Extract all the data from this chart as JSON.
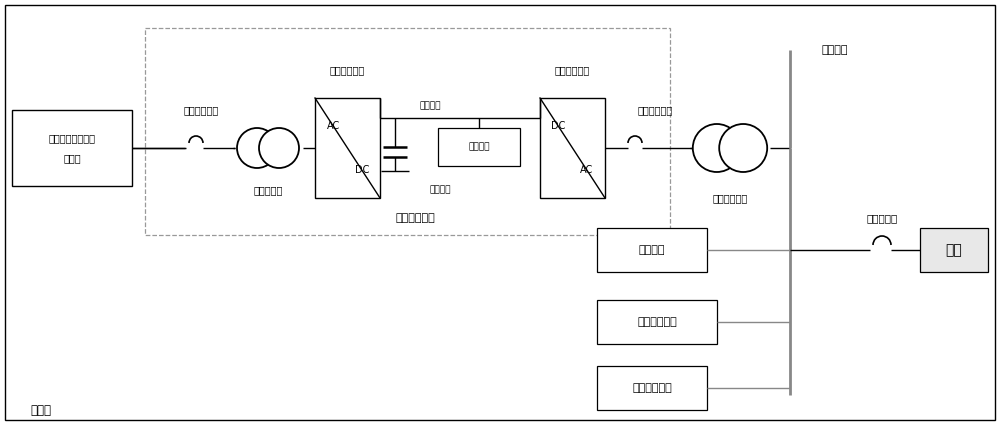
{
  "bg_color": "#ffffff",
  "line_color": "#000000",
  "gray_line_color": "#888888",
  "dashed_color": "#888888",
  "fig_width": 10.0,
  "fig_height": 4.26,
  "labels": {
    "hengsu_line1": "恒速异步风电机组",
    "hengsu_line2": "定子侧",
    "breaker1_label": "风电侧断路器",
    "transformer1_label": "隔离变压器",
    "ac_dc_label": "风电侧变换器",
    "dc_bus_label": "直流母线",
    "energy_module_label": "储能模块",
    "dc_cap_label": "直流电容",
    "dc_ac_label": "电网侧变换器",
    "breaker2_label": "电网侧断路器",
    "acdc_converter_label": "交直交变流器",
    "transformer2_label": "风电机组箱变",
    "ac_bus_label": "交流母线",
    "energy_sys_label": "储能系统",
    "important_load_label": "重要用电负荷",
    "general_load_label": "一般用电负荷",
    "grid_breaker_label": "并网断路器",
    "grid_label": "电网",
    "microgrid_label": "微电网"
  }
}
